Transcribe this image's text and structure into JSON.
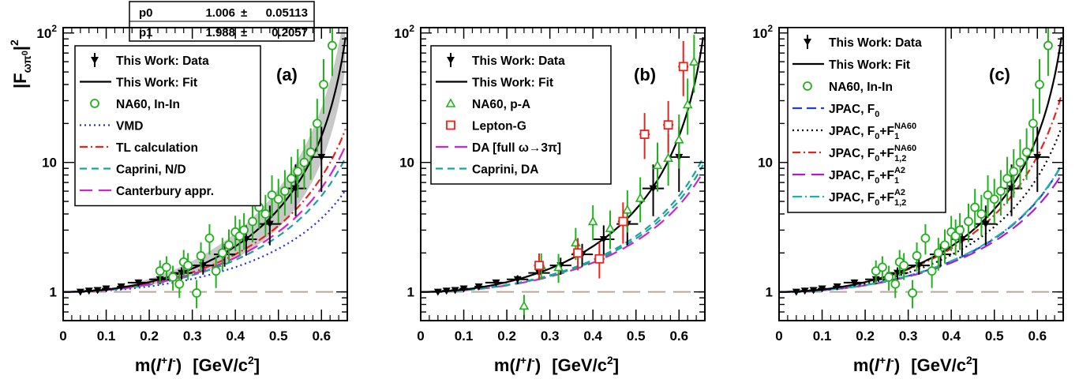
{
  "figure": {
    "ylabel_main": "|F",
    "ylabel_sub": "ωπ",
    "ylabel_sup0": "0",
    "ylabel_bar": "|",
    "ylabel_sup2": "2",
    "xlabel_m": "m(",
    "xlabel_l1": "l",
    "xlabel_plus": "+",
    "xlabel_l2": "l",
    "xlabel_minus": "-",
    "xlabel_close": ")",
    "xlabel_unit": "[GeV/c",
    "xlabel_unit_sup": "2",
    "xlabel_unit_close": "]"
  },
  "fit_box": {
    "rows": [
      {
        "name": "p0",
        "value": "1.006",
        "pm": "±",
        "err": "0.05113"
      },
      {
        "name": "p1",
        "value": "1.988",
        "pm": "±",
        "err": "0.2057"
      }
    ]
  },
  "colors": {
    "data": "#000000",
    "fit": "#000000",
    "na60": "#22b11d",
    "vmd": "#1f2fe8",
    "tl": "#e8231c",
    "caprini": "#1aa39c",
    "canterbury": "#cf24cf",
    "lepton": "#e8231c",
    "jpac_f0": "#1f3fd6",
    "jpac_na60_1": "#000000",
    "jpac_na60_12": "#e8231c",
    "jpac_a2_1": "#b11cc9",
    "jpac_a2_12": "#18b5b0",
    "reference_line": "#b7a79b",
    "band": "#c8c8c8"
  },
  "chart_data": [
    {
      "type": "scatter",
      "panel_label": "(a)",
      "x_ticks": [
        "0",
        "0.1",
        "0.2",
        "0.3",
        "0.4",
        "0.5",
        "0.6"
      ],
      "y_ticks": [
        "1",
        "10"
      ],
      "y_top_tick": "10",
      "y_top_tick_exp": "2",
      "xlim": [
        0,
        0.66
      ],
      "ylim": [
        0.6,
        110
      ],
      "y_scale": "log",
      "legend": [
        "This Work: Data",
        "This Work: Fit",
        "NA60, In-In",
        "VMD",
        "TL calculation",
        "Caprini, N/D",
        "Canterbury appr."
      ],
      "series": [
        {
          "name": "This Work: Data",
          "x": [
            0.04,
            0.06,
            0.08,
            0.1,
            0.135,
            0.175,
            0.225,
            0.275,
            0.325,
            0.375,
            0.425,
            0.48,
            0.54,
            0.6
          ],
          "y": [
            1.0,
            1.02,
            1.03,
            1.06,
            1.1,
            1.18,
            1.25,
            1.4,
            1.6,
            1.95,
            2.55,
            3.35,
            6.3,
            11.0
          ]
        },
        {
          "name": "NA60, In-In",
          "x": [
            0.225,
            0.24,
            0.255,
            0.27,
            0.28,
            0.29,
            0.31,
            0.32,
            0.34,
            0.355,
            0.37,
            0.385,
            0.4,
            0.41,
            0.42,
            0.44,
            0.455,
            0.47,
            0.485,
            0.5,
            0.515,
            0.53,
            0.545,
            0.56,
            0.575,
            0.59,
            0.605,
            0.625
          ],
          "y": [
            1.45,
            1.55,
            1.3,
            1.15,
            1.7,
            1.6,
            0.98,
            1.9,
            2.6,
            1.45,
            2.0,
            2.3,
            2.9,
            2.7,
            3.0,
            3.5,
            4.5,
            4.0,
            5.6,
            5.2,
            6.0,
            7.5,
            8.5,
            10.0,
            12.0,
            20.0,
            40.0,
            80.0
          ]
        }
      ]
    },
    {
      "type": "scatter",
      "panel_label": "(b)",
      "x_ticks": [
        "0",
        "0.1",
        "0.2",
        "0.3",
        "0.4",
        "0.5",
        "0.6"
      ],
      "y_ticks": [
        "1",
        "10"
      ],
      "y_top_tick": "10",
      "y_top_tick_exp": "2",
      "xlim": [
        0,
        0.66
      ],
      "ylim": [
        0.6,
        110
      ],
      "y_scale": "log",
      "legend": [
        "This Work: Data",
        "This Work: Fit",
        "NA60, p-A",
        "Lepton-G",
        "DA [full ω→3π]",
        "Caprini, DA"
      ],
      "series": [
        {
          "name": "This Work: Data",
          "x": [
            0.04,
            0.06,
            0.08,
            0.1,
            0.135,
            0.175,
            0.225,
            0.275,
            0.325,
            0.375,
            0.425,
            0.48,
            0.54,
            0.6
          ],
          "y": [
            1.0,
            1.02,
            1.03,
            1.06,
            1.1,
            1.18,
            1.25,
            1.4,
            1.6,
            1.95,
            2.55,
            3.35,
            6.3,
            11.0
          ]
        },
        {
          "name": "NA60, p-A",
          "x": [
            0.24,
            0.28,
            0.32,
            0.36,
            0.4,
            0.44,
            0.48,
            0.51,
            0.55,
            0.575,
            0.6,
            0.62,
            0.635
          ],
          "y": [
            0.78,
            1.6,
            1.55,
            2.4,
            3.5,
            3.1,
            4.3,
            5.3,
            9.5,
            10.8,
            15.0,
            28.0,
            60.0
          ]
        },
        {
          "name": "Lepton-G",
          "x": [
            0.275,
            0.365,
            0.415,
            0.47,
            0.52,
            0.575,
            0.61
          ],
          "y": [
            1.6,
            2.0,
            1.8,
            3.5,
            16.5,
            19.5,
            55.0
          ]
        }
      ]
    },
    {
      "type": "scatter",
      "panel_label": "(c)",
      "x_ticks": [
        "0",
        "0.1",
        "0.2",
        "0.3",
        "0.4",
        "0.5",
        "0.6"
      ],
      "y_ticks": [
        "1",
        "10"
      ],
      "y_top_tick": "10",
      "y_top_tick_exp": "2",
      "xlim": [
        0,
        0.66
      ],
      "ylim": [
        0.6,
        110
      ],
      "y_scale": "log",
      "legend": [
        "This Work: Data",
        "This Work: Fit",
        "NA60, In-In",
        "JPAC, F0",
        "JPAC, F0+F1^NA60",
        "JPAC, F0+F1,2^NA60",
        "JPAC, F0+F1^A2",
        "JPAC, F0+F1,2^A2"
      ],
      "series": [
        {
          "name": "This Work: Data",
          "x": [
            0.04,
            0.06,
            0.08,
            0.1,
            0.135,
            0.175,
            0.225,
            0.275,
            0.325,
            0.375,
            0.425,
            0.48,
            0.54,
            0.6
          ],
          "y": [
            1.0,
            1.02,
            1.03,
            1.06,
            1.1,
            1.18,
            1.25,
            1.4,
            1.6,
            1.95,
            2.55,
            3.35,
            6.3,
            11.0
          ]
        },
        {
          "name": "NA60, In-In",
          "x": [
            0.225,
            0.24,
            0.255,
            0.27,
            0.28,
            0.29,
            0.31,
            0.32,
            0.34,
            0.355,
            0.37,
            0.385,
            0.4,
            0.41,
            0.42,
            0.44,
            0.455,
            0.47,
            0.485,
            0.5,
            0.515,
            0.53,
            0.545,
            0.56,
            0.575,
            0.59,
            0.605,
            0.625
          ],
          "y": [
            1.45,
            1.55,
            1.3,
            1.15,
            1.7,
            1.6,
            0.98,
            1.9,
            2.6,
            1.45,
            2.0,
            2.3,
            2.9,
            2.7,
            3.0,
            3.5,
            4.5,
            4.0,
            5.6,
            5.2,
            6.0,
            7.5,
            8.5,
            10.0,
            12.0,
            20.0,
            40.0,
            80.0
          ]
        }
      ]
    }
  ]
}
